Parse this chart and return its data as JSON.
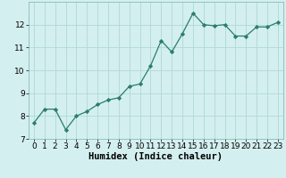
{
  "x": [
    0,
    1,
    2,
    3,
    4,
    5,
    6,
    7,
    8,
    9,
    10,
    11,
    12,
    13,
    14,
    15,
    16,
    17,
    18,
    19,
    20,
    21,
    22,
    23
  ],
  "y": [
    7.7,
    8.3,
    8.3,
    7.4,
    8.0,
    8.2,
    8.5,
    8.7,
    8.8,
    9.3,
    9.4,
    10.2,
    11.3,
    10.8,
    11.6,
    12.5,
    12.0,
    11.95,
    12.0,
    11.5,
    11.5,
    11.9,
    11.9,
    12.1
  ],
  "line_color": "#2a7d6e",
  "bg_color": "#d4efef",
  "grid_color": "#b0d8d8",
  "xlabel": "Humidex (Indice chaleur)",
  "xlabel_fontsize": 7.5,
  "tick_fontsize": 6.5,
  "ylim": [
    7,
    13
  ],
  "xlim": [
    -0.5,
    23.5
  ],
  "yticks": [
    7,
    8,
    9,
    10,
    11,
    12
  ],
  "xticks": [
    0,
    1,
    2,
    3,
    4,
    5,
    6,
    7,
    8,
    9,
    10,
    11,
    12,
    13,
    14,
    15,
    16,
    17,
    18,
    19,
    20,
    21,
    22,
    23
  ]
}
